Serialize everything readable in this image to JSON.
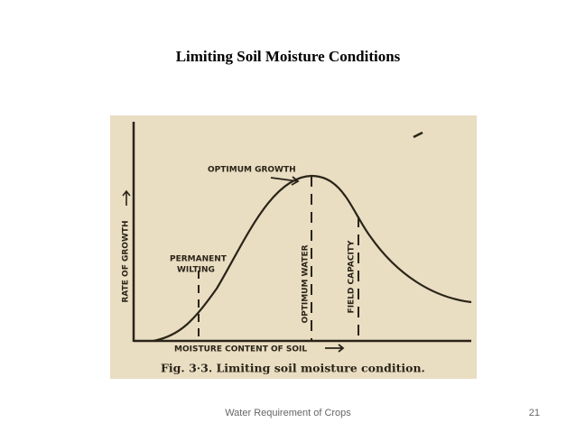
{
  "title": "Limiting Soil Moisture Conditions",
  "figure": {
    "y_axis_label": "RATE OF GROWTH",
    "x_axis_label": "MOISTURE CONTENT OF SOIL",
    "optimum_growth": "OPTIMUM GROWTH",
    "permanent_wilting": [
      "PERMANENT",
      "WILTING"
    ],
    "optimum_water": "OPTIMUM WATER",
    "field_capacity": "FIELD CAPACITY",
    "caption": "Fig. 3·3.  Limiting soil moisture condition."
  },
  "footer": {
    "text": "Water Requirement of Crops",
    "page": "21"
  }
}
